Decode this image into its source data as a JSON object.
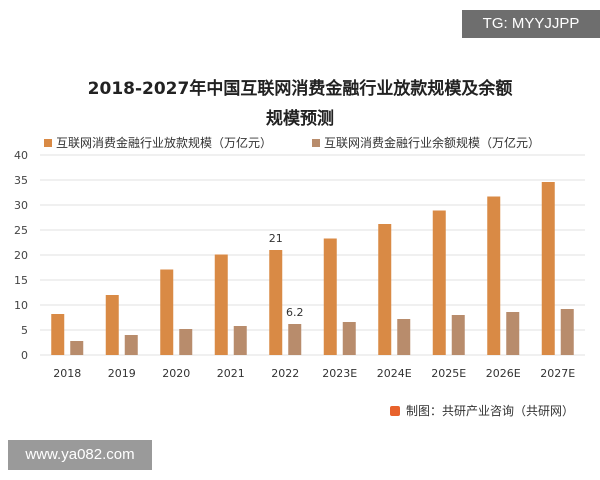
{
  "badge_top": "TG: MYYJJPP",
  "badge_bottom": "www.ya082.com",
  "source": "制图：共研产业咨询（共研网）",
  "colors": {
    "loan": "#d98a45",
    "balance": "#b88c6c",
    "grid": "#e2e2e2"
  },
  "chart_data": {
    "type": "bar",
    "title": "2018-2027年中国互联网消费金融行业放款规模及余额规模预测",
    "title_lines": [
      "2018-2027年中国互联网消费金融行业放款规模及余额",
      "规模预测"
    ],
    "categories": [
      "2018",
      "2019",
      "2020",
      "2021",
      "2022",
      "2023E",
      "2024E",
      "2025E",
      "2026E",
      "2027E"
    ],
    "series": [
      {
        "name": "互联网消费金融行业放款规模（万亿元）",
        "values": [
          8.2,
          12.0,
          17.1,
          20.1,
          21,
          23.3,
          26.2,
          28.9,
          31.7,
          34.6
        ]
      },
      {
        "name": "互联网消费金融行业余额规模（万亿元）",
        "values": [
          2.8,
          4.0,
          5.2,
          5.8,
          6.2,
          6.6,
          7.2,
          8.0,
          8.6,
          9.2
        ]
      }
    ],
    "data_labels": [
      {
        "series": 0,
        "category": "2022",
        "text": "21"
      },
      {
        "series": 1,
        "category": "2022",
        "text": "6.2"
      }
    ],
    "ylim": [
      0,
      40
    ],
    "yticks": [
      0,
      5,
      10,
      15,
      20,
      25,
      30,
      35,
      40
    ],
    "grid": true,
    "legend": "top"
  }
}
